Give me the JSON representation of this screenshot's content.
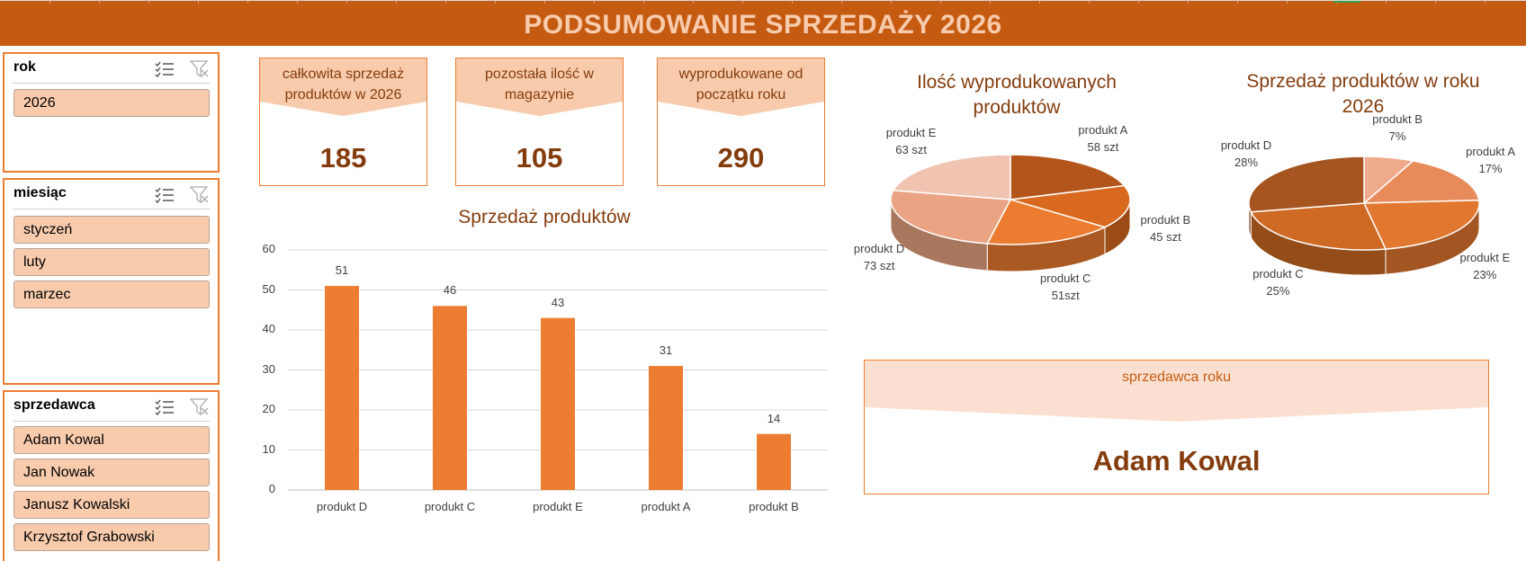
{
  "header": {
    "title": "PODSUMOWANIE SPRZEDAŻY 2026",
    "bg_color": "#c55a11",
    "text_color": "#f8cbad"
  },
  "slicers": {
    "rok": {
      "label": "rok",
      "items": [
        "2026"
      ]
    },
    "miesiac": {
      "label": "miesiąc",
      "items": [
        "styczeń",
        "luty",
        "marzec"
      ]
    },
    "sprzedawca": {
      "label": "sprzedawca",
      "items": [
        "Adam Kowal",
        "Jan Nowak",
        "Janusz Kowalski",
        "Krzysztof Grabowski"
      ]
    }
  },
  "kpis": [
    {
      "label": "całkowita sprzedaż produktów w 2026",
      "value": "185"
    },
    {
      "label": "pozostała ilość w magazynie",
      "value": "105"
    },
    {
      "label": "wyprodukowane od początku roku",
      "value": "290"
    }
  ],
  "seller_card": {
    "label": "sprzedawca roku",
    "name": "Adam Kowal"
  },
  "colors": {
    "accent": "#ed7d31",
    "dark_text": "#843c0c",
    "light_fill": "#f8cbad"
  },
  "chart_data": [
    {
      "type": "bar",
      "title": "Sprzedaż produktów",
      "categories": [
        "produkt D",
        "produkt C",
        "produkt E",
        "produkt A",
        "produkt B"
      ],
      "values": [
        51,
        46,
        43,
        31,
        14
      ],
      "ylim": [
        0,
        60
      ],
      "yticks": [
        0,
        10,
        20,
        30,
        40,
        50,
        60
      ],
      "grid": true,
      "color": "#ed7d31"
    },
    {
      "type": "pie",
      "title": "Ilość wyprodukowanych produktów",
      "slices": [
        {
          "name": "produkt A",
          "value": 58,
          "label": "58 szt",
          "color": "#b4561b"
        },
        {
          "name": "produkt B",
          "value": 45,
          "label": "45 szt",
          "color": "#d8691f"
        },
        {
          "name": "produkt C",
          "value": 51,
          "label": "51szt",
          "color": "#ec7c30"
        },
        {
          "name": "produkt D",
          "value": 73,
          "label": "73 szt",
          "color": "#eba483"
        },
        {
          "name": "produkt E",
          "value": 63,
          "label": "63 szt",
          "color": "#f1c3b1"
        }
      ]
    },
    {
      "type": "pie",
      "title": "Sprzedaż produktów w roku 2026",
      "slices": [
        {
          "name": "produkt B",
          "value": 7,
          "label": "7%",
          "color": "#efa98b"
        },
        {
          "name": "produkt A",
          "value": 17,
          "label": "17%",
          "color": "#e88b5a"
        },
        {
          "name": "produkt E",
          "value": 23,
          "label": "23%",
          "color": "#e2772f"
        },
        {
          "name": "produkt C",
          "value": 25,
          "label": "25%",
          "color": "#ce6a23"
        },
        {
          "name": "produkt D",
          "value": 28,
          "label": "28%",
          "color": "#a65420"
        }
      ]
    }
  ]
}
